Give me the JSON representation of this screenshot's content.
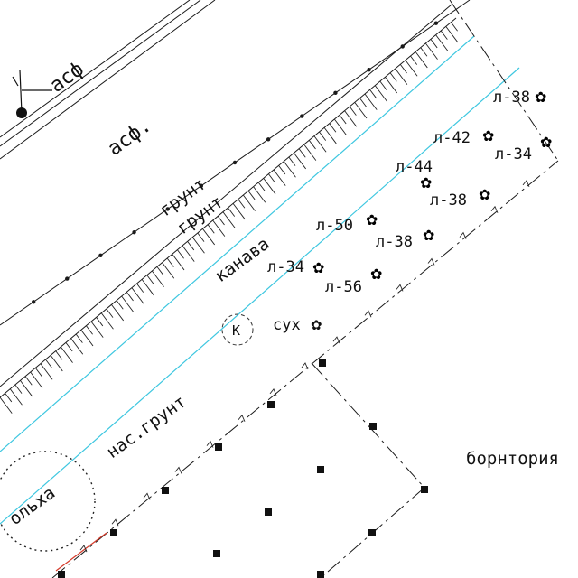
{
  "map": {
    "labels": {
      "asphalt_road": "асф",
      "asphalt_area": "асф.",
      "ground_1": "грунт",
      "ground_2": "грунт",
      "ditch": "канава",
      "filled_ground": "нас.грунт",
      "dry_tree": "сух",
      "well_marker": "К",
      "oval_partial": "ольха",
      "building_partial": "борнтория"
    },
    "trees": [
      {
        "id": "t1",
        "label": "л-38"
      },
      {
        "id": "t2",
        "label": "л-42"
      },
      {
        "id": "t3",
        "label": "л-34"
      },
      {
        "id": "t4",
        "label": "л-44"
      },
      {
        "id": "t5",
        "label": "л-38"
      },
      {
        "id": "t6",
        "label": "л-50"
      },
      {
        "id": "t7",
        "label": "л-38"
      },
      {
        "id": "t8",
        "label": "л-34"
      },
      {
        "id": "t9",
        "label": "л-56"
      }
    ],
    "colors": {
      "linework": "#1a1a1a",
      "water_line": "#3ec7e0",
      "accent_red": "#d43a2a",
      "background": "#ffffff"
    }
  }
}
